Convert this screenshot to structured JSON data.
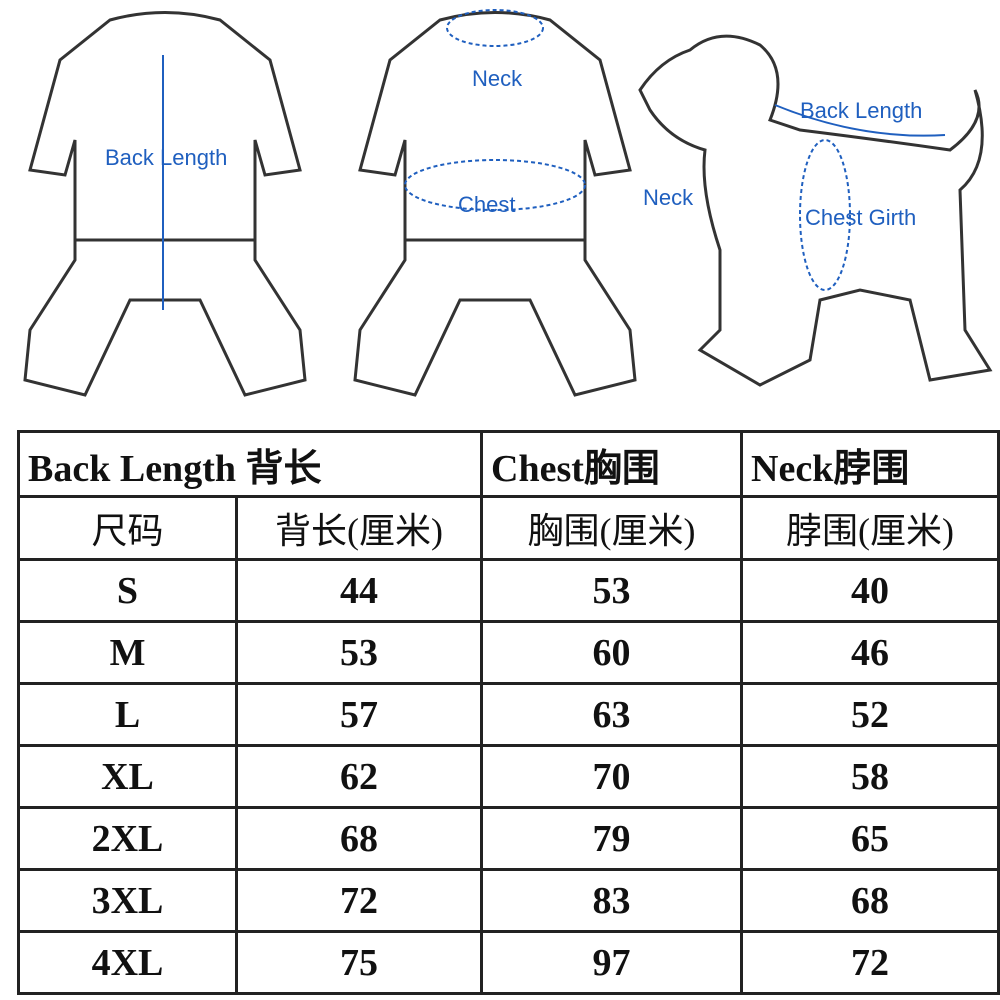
{
  "illustrations": {
    "garment_back": {
      "label": "Back Length"
    },
    "garment_front": {
      "neck_label": "Neck",
      "chest_label": "Chest"
    },
    "dog": {
      "back_label": "Back Length",
      "neck_label": "Neck",
      "chest_label": "Chest Girth"
    },
    "measure_color": "#1f5fbf"
  },
  "table": {
    "group_headers": [
      "Back Length 背长",
      "Chest胸围",
      "Neck脖围"
    ],
    "columns": [
      "尺码",
      "背长(厘米)",
      "胸围(厘米)",
      "脖围(厘米)"
    ],
    "rows": [
      [
        "S",
        "44",
        "53",
        "40"
      ],
      [
        "M",
        "53",
        "60",
        "46"
      ],
      [
        "L",
        "57",
        "63",
        "52"
      ],
      [
        "XL",
        "62",
        "70",
        "58"
      ],
      [
        "2XL",
        "68",
        "79",
        "65"
      ],
      [
        "3XL",
        "72",
        "83",
        "68"
      ],
      [
        "4XL",
        "75",
        "97",
        "72"
      ]
    ]
  }
}
